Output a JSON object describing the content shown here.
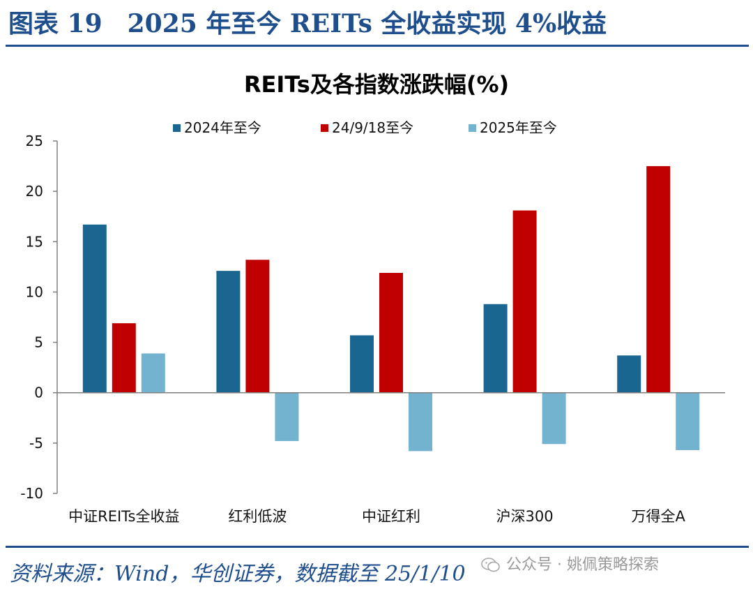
{
  "header": {
    "title": "图表 19　2025 年至今 REITs 全收益实现 4%收益"
  },
  "footer": {
    "source": "资料来源：Wind，华创证券，数据截至 25/1/10"
  },
  "watermark": {
    "text": "公众号 · 姚佩策略探索",
    "icon": "wechat-icon"
  },
  "colors": {
    "accent": "#1f4e8c",
    "s1": "#1b6690",
    "s2": "#c00000",
    "s3": "#74b3cf"
  },
  "chart_data": {
    "type": "bar",
    "title": "REITs及各指数涨跌幅(%)",
    "xlabel": "",
    "ylabel": "",
    "ylim": [
      -10,
      25
    ],
    "yticks": [
      25,
      20,
      15,
      10,
      5,
      0,
      -5,
      -10
    ],
    "legend_position": "top",
    "categories": [
      "中证REITs全收益",
      "红利低波",
      "中证红利",
      "沪深300",
      "万得全A"
    ],
    "series": [
      {
        "name": "2024年至今",
        "color": "#1b6690",
        "values": [
          16.7,
          12.1,
          5.7,
          8.8,
          3.7
        ]
      },
      {
        "name": "24/9/18至今",
        "color": "#c00000",
        "values": [
          6.9,
          13.2,
          11.9,
          18.1,
          22.5
        ]
      },
      {
        "name": "2025年至今",
        "color": "#74b3cf",
        "values": [
          3.9,
          -4.8,
          -5.8,
          -5.1,
          -5.7
        ]
      }
    ]
  }
}
